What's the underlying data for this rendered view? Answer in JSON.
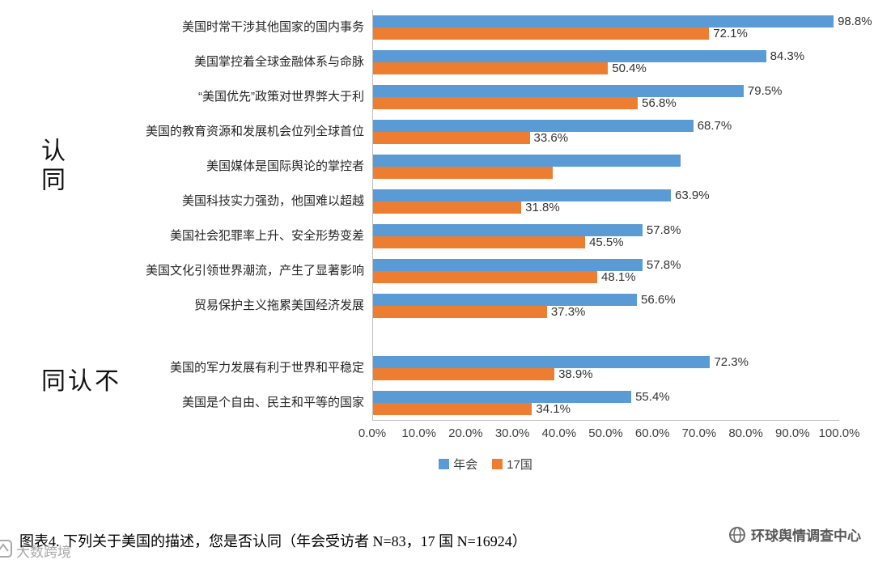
{
  "chart_data": {
    "type": "bar",
    "orientation": "horizontal",
    "xlim": [
      0,
      100
    ],
    "grid": false,
    "x_ticks": [
      "0.0%",
      "10.0%",
      "20.0%",
      "30.0%",
      "40.0%",
      "50.0%",
      "60.0%",
      "70.0%",
      "80.0%",
      "90.0%",
      "100.0%"
    ],
    "legend": [
      "年会",
      "17国"
    ],
    "colors": [
      "#5B9BD5",
      "#ED7D31"
    ],
    "legend_position": "bottom",
    "groups": [
      {
        "label": "认同",
        "categories": [
          "美国时常干涉其他国家的国内事务",
          "美国掌控着全球金融体系与命脉",
          "“美国优先”政策对世界弊大于利",
          "美国的教育资源和发展机会位列全球首位",
          "美国媒体是国际舆论的掌控者",
          "美国科技实力强劲，他国难以超越",
          "美国社会犯罪率上升、安全形势变差",
          "美国文化引领世界潮流，产生了显著影响",
          "贸易保护主义拖累美国经济发展"
        ],
        "series": [
          {
            "name": "年会",
            "values": [
              98.8,
              84.3,
              79.5,
              68.7,
              66.0,
              63.9,
              57.8,
              57.8,
              56.6
            ],
            "labels": [
              "98.8%",
              "84.3%",
              "79.5%",
              "68.7%",
              "",
              "63.9%",
              "57.8%",
              "57.8%",
              "56.6%"
            ]
          },
          {
            "name": "17国",
            "values": [
              72.1,
              50.4,
              56.8,
              33.6,
              38.5,
              31.8,
              45.5,
              48.1,
              37.3
            ],
            "labels": [
              "72.1%",
              "50.4%",
              "56.8%",
              "33.6%",
              "",
              "31.8%",
              "45.5%",
              "48.1%",
              "37.3%"
            ]
          }
        ]
      },
      {
        "label": "不认同",
        "categories": [
          "美国的军力发展有利于世界和平稳定",
          "美国是个自由、民主和平等的国家"
        ],
        "series": [
          {
            "name": "年会",
            "values": [
              72.3,
              55.4
            ],
            "labels": [
              "72.3%",
              "55.4%"
            ]
          },
          {
            "name": "17国",
            "values": [
              38.9,
              34.1
            ],
            "labels": [
              "38.9%",
              "34.1%"
            ]
          }
        ]
      }
    ]
  },
  "caption": {
    "text": "图表4.    下列关于美国的描述，您是否认同（年会受访者 N=83，17 国 N=16924）"
  },
  "branding": {
    "text": "环球舆情调查中心"
  },
  "watermark": {
    "text": "大数跨境"
  }
}
